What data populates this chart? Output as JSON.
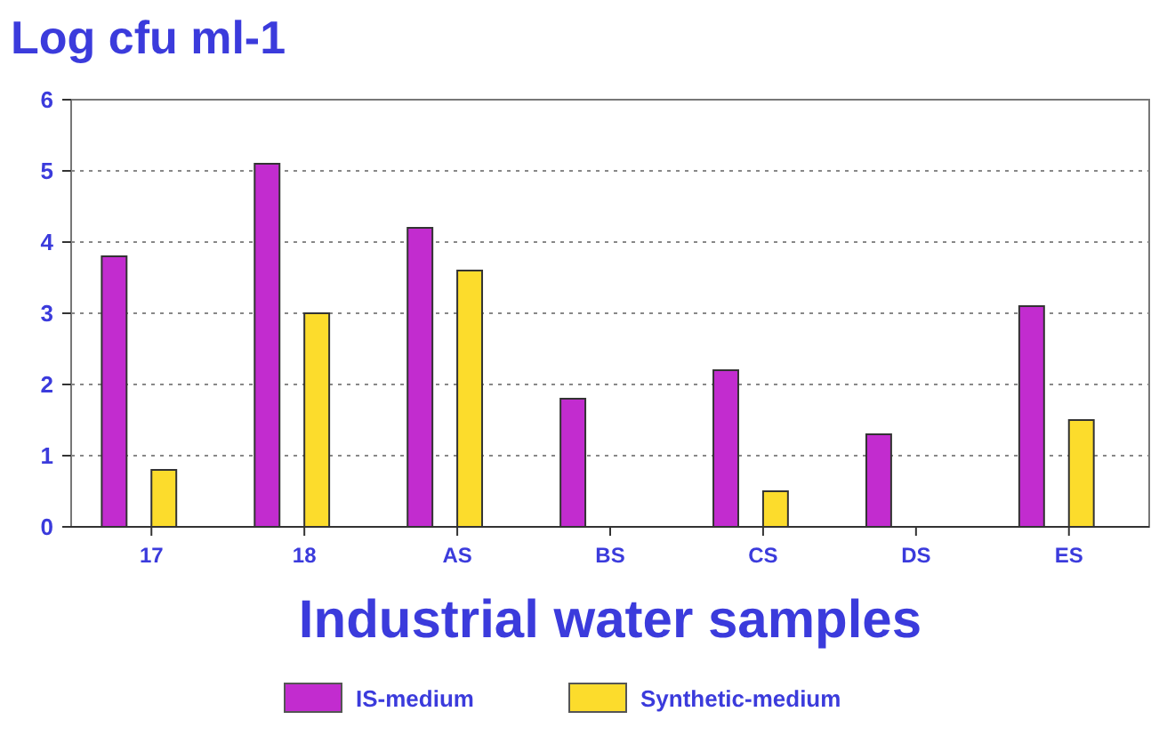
{
  "chart_data": {
    "type": "bar",
    "title": "Log cfu ml-1",
    "xlabel": "Industrial water samples",
    "categories": [
      "17",
      "18",
      "AS",
      "BS",
      "CS",
      "DS",
      "ES"
    ],
    "series": [
      {
        "name": "IS-medium",
        "color": "#c22ccf",
        "values": [
          3.8,
          5.1,
          4.2,
          1.8,
          2.2,
          1.3,
          3.1
        ]
      },
      {
        "name": "Synthetic-medium",
        "color": "#fcdc2c",
        "values": [
          0.8,
          3.0,
          3.6,
          0,
          0.5,
          0,
          1.5
        ]
      }
    ],
    "ylim": [
      0,
      6
    ],
    "yticks": [
      0,
      1,
      2,
      3,
      4,
      5,
      6
    ],
    "grid": "y",
    "legend": "bottom"
  }
}
